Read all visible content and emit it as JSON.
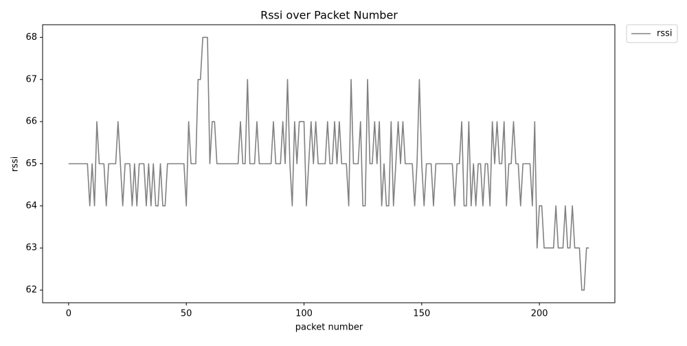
{
  "chart_data": {
    "type": "line",
    "title": "Rssi over Packet Number",
    "xlabel": "packet number",
    "ylabel": "rssi",
    "x": [
      0,
      1,
      2,
      3,
      4,
      5,
      6,
      7,
      8,
      9,
      10,
      11,
      12,
      13,
      14,
      15,
      16,
      17,
      18,
      19,
      20,
      21,
      22,
      23,
      24,
      25,
      26,
      27,
      28,
      29,
      30,
      31,
      32,
      33,
      34,
      35,
      36,
      37,
      38,
      39,
      40,
      41,
      42,
      43,
      44,
      45,
      46,
      47,
      48,
      49,
      50,
      51,
      52,
      53,
      54,
      55,
      56,
      57,
      58,
      59,
      60,
      61,
      62,
      63,
      64,
      65,
      66,
      67,
      68,
      69,
      70,
      71,
      72,
      73,
      74,
      75,
      76,
      77,
      78,
      79,
      80,
      81,
      82,
      83,
      84,
      85,
      86,
      87,
      88,
      89,
      90,
      91,
      92,
      93,
      94,
      95,
      96,
      97,
      98,
      99,
      100,
      101,
      102,
      103,
      104,
      105,
      106,
      107,
      108,
      109,
      110,
      111,
      112,
      113,
      114,
      115,
      116,
      117,
      118,
      119,
      120,
      121,
      122,
      123,
      124,
      125,
      126,
      127,
      128,
      129,
      130,
      131,
      132,
      133,
      134,
      135,
      136,
      137,
      138,
      139,
      140,
      141,
      142,
      143,
      144,
      145,
      146,
      147,
      148,
      149,
      150,
      151,
      152,
      153,
      154,
      155,
      156,
      157,
      158,
      159,
      160,
      161,
      162,
      163,
      164,
      165,
      166,
      167,
      168,
      169,
      170,
      171,
      172,
      173,
      174,
      175,
      176,
      177,
      178,
      179,
      180,
      181,
      182,
      183,
      184,
      185,
      186,
      187,
      188,
      189,
      190,
      191,
      192,
      193,
      194,
      195,
      196,
      197,
      198,
      199,
      200,
      201,
      202,
      203,
      204,
      205,
      206,
      207,
      208,
      209,
      210,
      211,
      212,
      213,
      214,
      215,
      216,
      217,
      218,
      219,
      220,
      221
    ],
    "series": [
      {
        "name": "rssi",
        "color": "#808080",
        "values": [
          65,
          65,
          65,
          65,
          65,
          65,
          65,
          65,
          65,
          64,
          65,
          64,
          66,
          65,
          65,
          65,
          64,
          65,
          65,
          65,
          65,
          66,
          65,
          64,
          65,
          65,
          65,
          64,
          65,
          64,
          65,
          65,
          65,
          64,
          65,
          64,
          65,
          64,
          64,
          65,
          64,
          64,
          65,
          65,
          65,
          65,
          65,
          65,
          65,
          65,
          64,
          66,
          65,
          65,
          65,
          67,
          67,
          68,
          68,
          68,
          65,
          66,
          66,
          65,
          65,
          65,
          65,
          65,
          65,
          65,
          65,
          65,
          65,
          66,
          65,
          65,
          67,
          65,
          65,
          65,
          66,
          65,
          65,
          65,
          65,
          65,
          65,
          66,
          65,
          65,
          65,
          66,
          65,
          67,
          65,
          64,
          66,
          65,
          66,
          66,
          66,
          64,
          65,
          66,
          65,
          66,
          65,
          65,
          65,
          65,
          66,
          65,
          65,
          66,
          65,
          66,
          65,
          65,
          65,
          64,
          67,
          65,
          65,
          65,
          66,
          64,
          64,
          67,
          65,
          65,
          66,
          65,
          66,
          64,
          65,
          64,
          64,
          66,
          64,
          65,
          66,
          65,
          66,
          65,
          65,
          65,
          65,
          64,
          65,
          67,
          65,
          64,
          65,
          65,
          65,
          64,
          65,
          65,
          65,
          65,
          65,
          65,
          65,
          65,
          64,
          65,
          65,
          66,
          64,
          64,
          66,
          64,
          65,
          64,
          65,
          65,
          64,
          65,
          65,
          64,
          66,
          65,
          66,
          65,
          65,
          66,
          64,
          65,
          65,
          66,
          65,
          65,
          64,
          65,
          65,
          65,
          65,
          64,
          66,
          63,
          64,
          64,
          63,
          63,
          63,
          63,
          63,
          64,
          63,
          63,
          63,
          64,
          63,
          63,
          64,
          63,
          63,
          63,
          62,
          62,
          63,
          63
        ]
      }
    ],
    "xlim": [
      -11.05,
      232.05
    ],
    "ylim": [
      61.7,
      68.3
    ],
    "xticks": [
      0,
      50,
      100,
      150,
      200
    ],
    "yticks": [
      62,
      63,
      64,
      65,
      66,
      67,
      68
    ],
    "legend": "outside-upper-right"
  }
}
